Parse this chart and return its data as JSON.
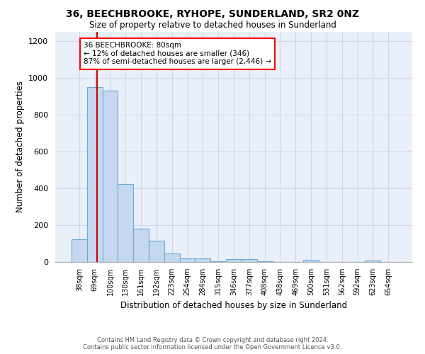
{
  "title": "36, BEECHBROOKE, RYHOPE, SUNDERLAND, SR2 0NZ",
  "subtitle": "Size of property relative to detached houses in Sunderland",
  "xlabel": "Distribution of detached houses by size in Sunderland",
  "ylabel": "Number of detached properties",
  "bar_color": "#c5d8f0",
  "bar_edge_color": "#6aaad4",
  "categories": [
    "38sqm",
    "69sqm",
    "100sqm",
    "130sqm",
    "161sqm",
    "192sqm",
    "223sqm",
    "254sqm",
    "284sqm",
    "315sqm",
    "346sqm",
    "377sqm",
    "408sqm",
    "438sqm",
    "469sqm",
    "500sqm",
    "531sqm",
    "562sqm",
    "592sqm",
    "623sqm",
    "654sqm"
  ],
  "values": [
    125,
    950,
    930,
    425,
    180,
    115,
    45,
    20,
    20,
    5,
    15,
    15,
    5,
    0,
    0,
    10,
    0,
    0,
    0,
    8,
    0
  ],
  "annotation_box_text": "36 BEECHBROOKE: 80sqm\n← 12% of detached houses are smaller (346)\n87% of semi-detached houses are larger (2,446) →",
  "annotation_box_color": "white",
  "annotation_box_edge_color": "red",
  "vline_color": "#cc0000",
  "vline_x": 1.15,
  "ylim": [
    0,
    1250
  ],
  "yticks": [
    0,
    200,
    400,
    600,
    800,
    1000,
    1200
  ],
  "footer_text": "Contains HM Land Registry data © Crown copyright and database right 2024.\nContains public sector information licensed under the Open Government Licence v3.0.",
  "background_color": "#eaf0f9",
  "grid_color": "#d0d8e8"
}
